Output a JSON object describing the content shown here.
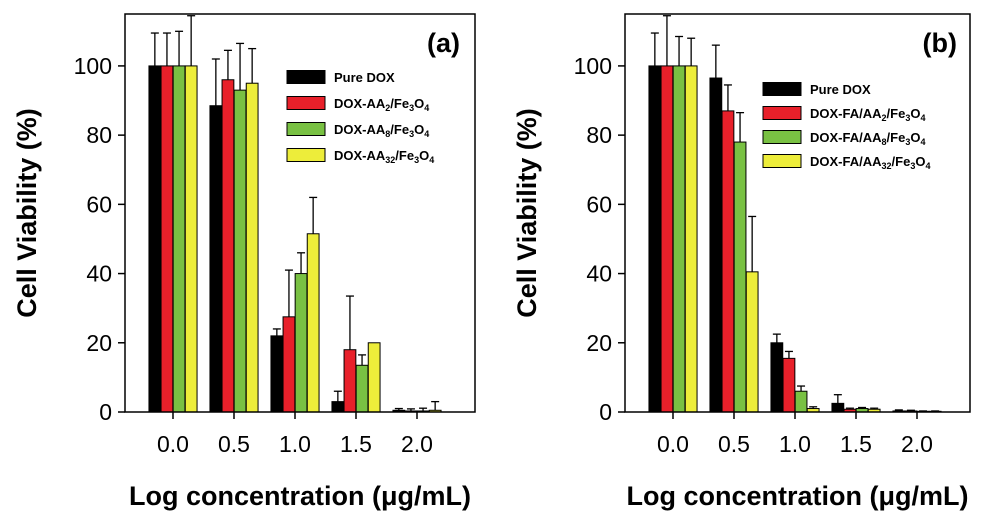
{
  "chart_data": [
    {
      "type": "bar",
      "panel_label": "(a)",
      "xlabel": "Log concentration (μg/mL)",
      "ylabel": "Cell Viability (%)",
      "categories": [
        "0.0",
        "0.5",
        "1.0",
        "1.5",
        "2.0"
      ],
      "ylim": [
        0,
        115
      ],
      "yticks": [
        0,
        20,
        40,
        60,
        80,
        100
      ],
      "legend_position": "top-right",
      "series": [
        {
          "name": "Pure DOX",
          "name_parts": [
            {
              "t": "Pure DOX"
            }
          ],
          "color": "#000000",
          "values": [
            100,
            88.5,
            22,
            3,
            0.5
          ],
          "errors": [
            9.5,
            13.5,
            2,
            3,
            0.5
          ]
        },
        {
          "name": "DOX-AA2/Fe3O4",
          "name_parts": [
            {
              "t": "DOX-AA"
            },
            {
              "t": "2",
              "sub": true
            },
            {
              "t": "/Fe"
            },
            {
              "t": "3",
              "sub": true
            },
            {
              "t": "O"
            },
            {
              "t": "4",
              "sub": true
            }
          ],
          "color": "#e8202a",
          "values": [
            100,
            96,
            27.5,
            18,
            0.3
          ],
          "errors": [
            9.5,
            8.5,
            13.5,
            15.5,
            0.6
          ]
        },
        {
          "name": "DOX-AA8/Fe3O4",
          "name_parts": [
            {
              "t": "DOX-AA"
            },
            {
              "t": "8",
              "sub": true
            },
            {
              "t": "/Fe"
            },
            {
              "t": "3",
              "sub": true
            },
            {
              "t": "O"
            },
            {
              "t": "4",
              "sub": true
            }
          ],
          "color": "#79c143",
          "values": [
            100,
            93,
            40,
            13.5,
            0.3
          ],
          "errors": [
            10,
            13.5,
            6,
            3,
            0.8
          ]
        },
        {
          "name": "DOX-AA32/Fe3O4",
          "name_parts": [
            {
              "t": "DOX-AA"
            },
            {
              "t": "32",
              "sub": true
            },
            {
              "t": "/Fe"
            },
            {
              "t": "3",
              "sub": true
            },
            {
              "t": "O"
            },
            {
              "t": "4",
              "sub": true
            }
          ],
          "color": "#eded3a",
          "values": [
            100,
            95,
            51.5,
            20,
            0.5
          ],
          "errors": [
            14.5,
            10,
            10.5,
            0,
            2.5
          ]
        }
      ]
    },
    {
      "type": "bar",
      "panel_label": "(b)",
      "xlabel": "Log concentration (μg/mL)",
      "ylabel": "Cell Viability (%)",
      "categories": [
        "0.0",
        "0.5",
        "1.0",
        "1.5",
        "2.0"
      ],
      "ylim": [
        0,
        115
      ],
      "yticks": [
        0,
        20,
        40,
        60,
        80,
        100
      ],
      "legend_position": "top-right",
      "series": [
        {
          "name": "Pure DOX",
          "name_parts": [
            {
              "t": "Pure DOX"
            }
          ],
          "color": "#000000",
          "values": [
            100,
            96.5,
            20,
            2.5,
            0.3
          ],
          "errors": [
            9.5,
            9.5,
            2.5,
            2.5,
            0.3
          ]
        },
        {
          "name": "DOX-FA/AA2/Fe3O4",
          "name_parts": [
            {
              "t": "DOX-FA/AA"
            },
            {
              "t": "2",
              "sub": true
            },
            {
              "t": "/Fe"
            },
            {
              "t": "3",
              "sub": true
            },
            {
              "t": "O"
            },
            {
              "t": "4",
              "sub": true
            }
          ],
          "color": "#e8202a",
          "values": [
            100,
            87,
            15.5,
            0.8,
            0.3
          ],
          "errors": [
            14.5,
            7.5,
            2,
            0.3,
            0.2
          ]
        },
        {
          "name": "DOX-FA/AA8/Fe3O4",
          "name_parts": [
            {
              "t": "DOX-FA/AA"
            },
            {
              "t": "8",
              "sub": true
            },
            {
              "t": "/Fe"
            },
            {
              "t": "3",
              "sub": true
            },
            {
              "t": "O"
            },
            {
              "t": "4",
              "sub": true
            }
          ],
          "color": "#79c143",
          "values": [
            100,
            78,
            6,
            1,
            0.2
          ],
          "errors": [
            8.5,
            8.5,
            1.5,
            0.3,
            0.1
          ]
        },
        {
          "name": "DOX-FA/AA32/Fe3O4",
          "name_parts": [
            {
              "t": "DOX-FA/AA"
            },
            {
              "t": "32",
              "sub": true
            },
            {
              "t": "/Fe"
            },
            {
              "t": "3",
              "sub": true
            },
            {
              "t": "O"
            },
            {
              "t": "4",
              "sub": true
            }
          ],
          "color": "#eded3a",
          "values": [
            100,
            40.5,
            1,
            0.8,
            0.2
          ],
          "errors": [
            8,
            16,
            0.5,
            0.3,
            0.1
          ]
        }
      ]
    }
  ]
}
